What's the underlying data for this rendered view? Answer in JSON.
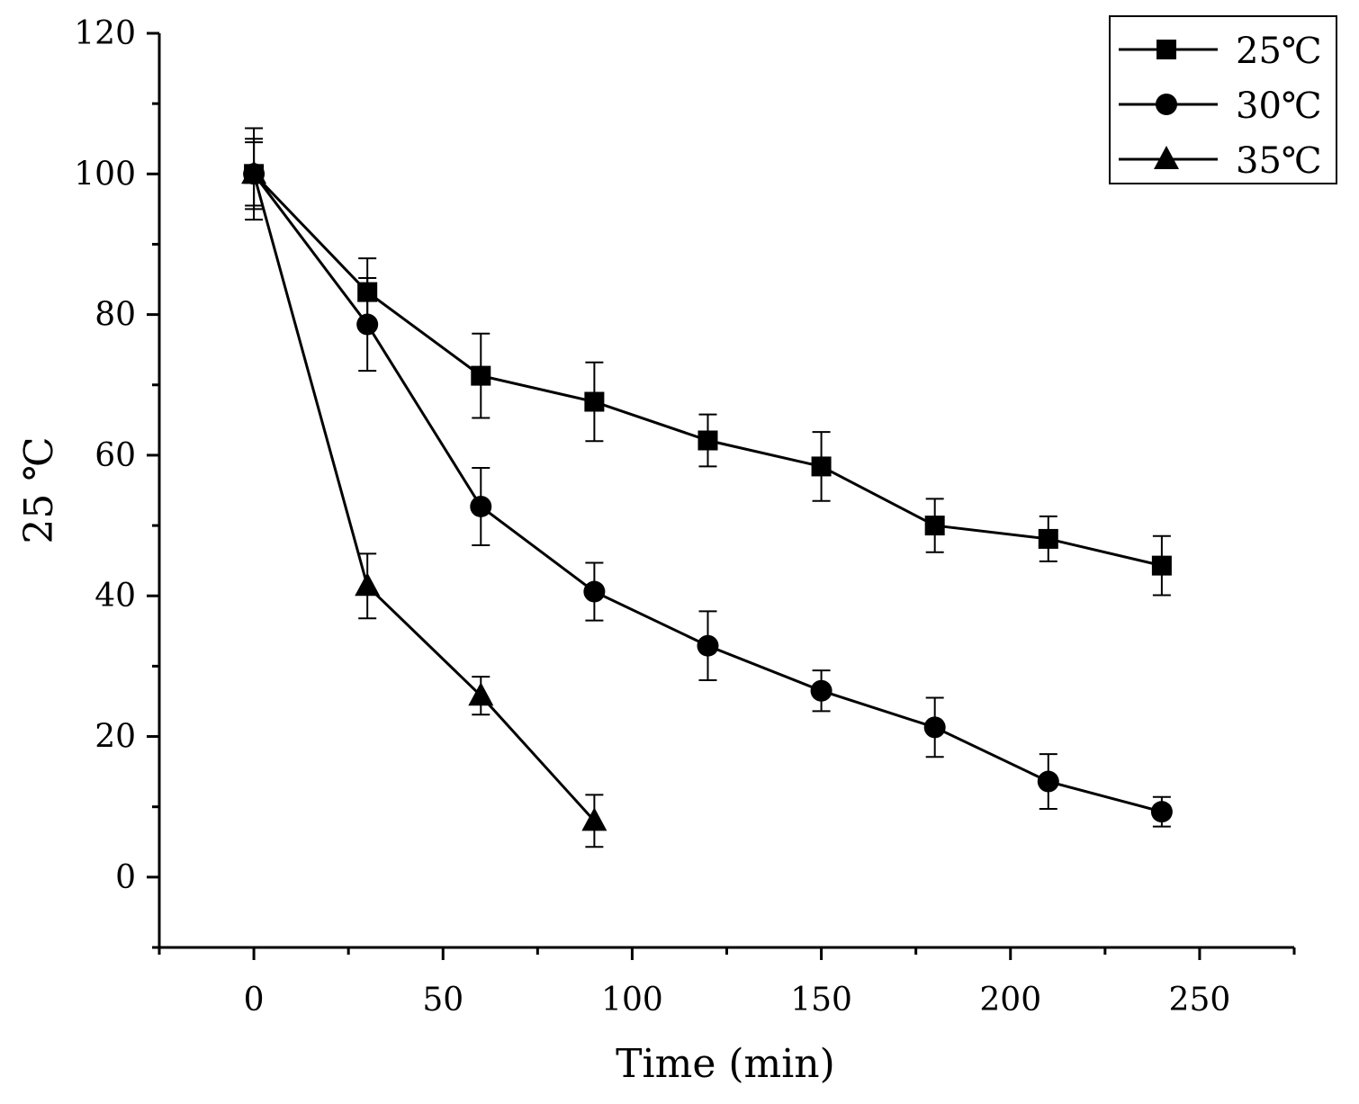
{
  "chart_data": {
    "type": "line",
    "title": "",
    "xlabel": "Time (min)",
    "ylabel": "25 ℃",
    "xlim": [
      -25,
      275
    ],
    "ylim": [
      -10,
      120
    ],
    "x_ticks": [
      0,
      50,
      100,
      150,
      200,
      250
    ],
    "y_ticks": [
      0,
      20,
      40,
      60,
      80,
      100,
      120
    ],
    "grid": false,
    "legend_position": "top-right",
    "series": [
      {
        "name": "25℃",
        "marker": "square",
        "x": [
          0,
          30,
          60,
          90,
          120,
          150,
          180,
          210,
          240
        ],
        "y": [
          100,
          83.2,
          71.3,
          67.6,
          62.1,
          58.4,
          50.0,
          48.1,
          44.3
        ],
        "error": [
          6.5,
          4.8,
          6.0,
          5.6,
          3.7,
          4.9,
          3.8,
          3.2,
          4.2
        ]
      },
      {
        "name": "30℃",
        "marker": "circle",
        "x": [
          0,
          30,
          60,
          90,
          120,
          150,
          180,
          210,
          240
        ],
        "y": [
          100,
          78.6,
          52.7,
          40.6,
          32.9,
          26.5,
          21.3,
          13.6,
          9.3
        ],
        "error": [
          5.0,
          6.6,
          5.5,
          4.1,
          4.9,
          2.9,
          4.2,
          3.9,
          2.1
        ]
      },
      {
        "name": "35℃",
        "marker": "triangle",
        "x": [
          0,
          30,
          60,
          90
        ],
        "y": [
          100,
          41.4,
          25.8,
          8.0
        ],
        "error": [
          4.5,
          4.6,
          2.7,
          3.7
        ]
      }
    ]
  }
}
